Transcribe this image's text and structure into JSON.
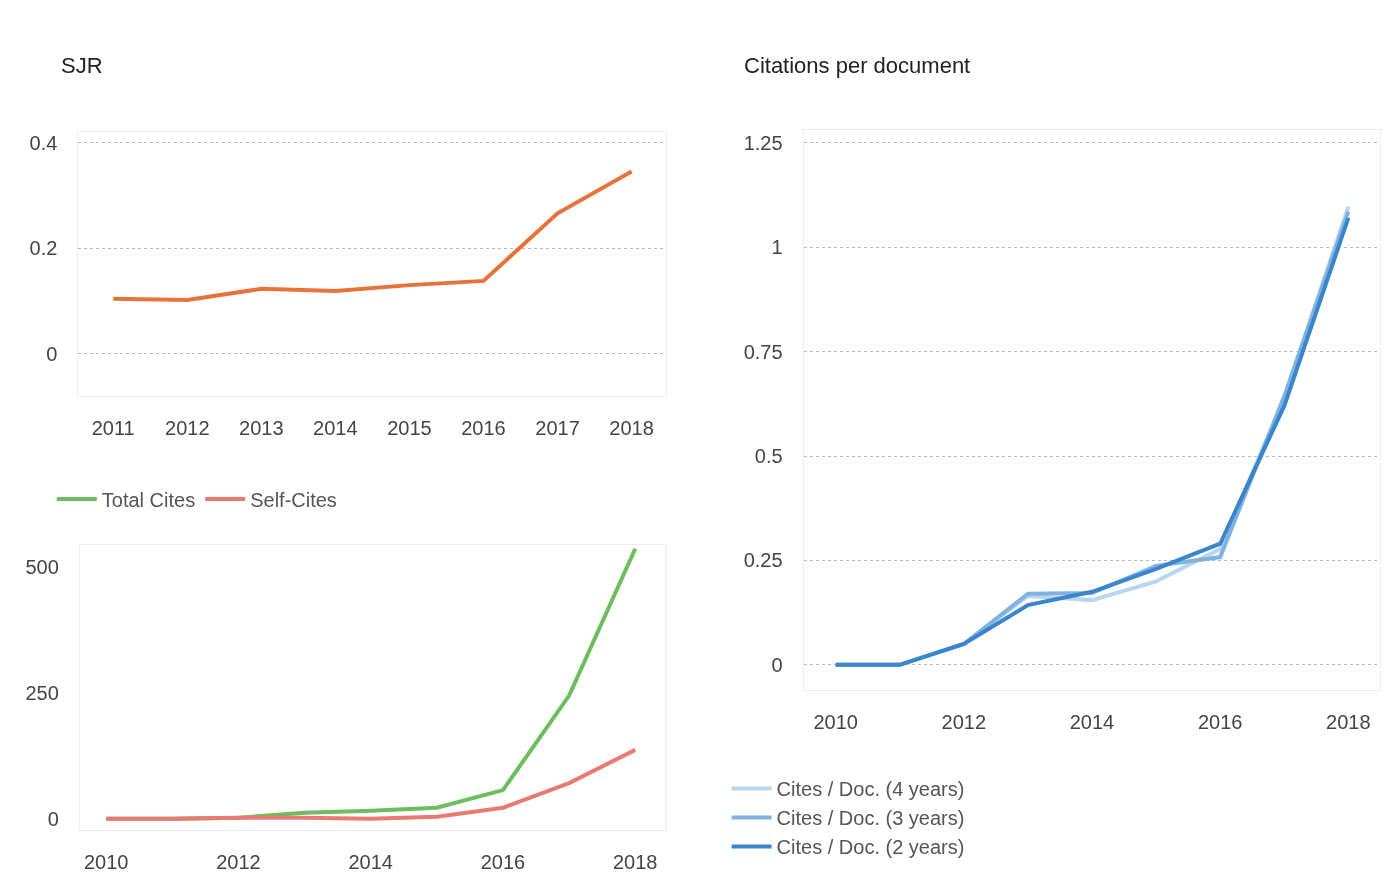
{
  "chart_data": [
    {
      "type": "line",
      "title": "SJR",
      "x": [
        2011,
        2012,
        2013,
        2014,
        2015,
        2016,
        2017,
        2018
      ],
      "series": [
        {
          "color": "#e8733a",
          "values": [
            0.104,
            0.102,
            0.123,
            0.119,
            0.13,
            0.138,
            0.266,
            0.345
          ]
        }
      ],
      "xlim": [
        2010.53,
        2018.47
      ],
      "xticks": [
        2011,
        2012,
        2013,
        2014,
        2015,
        2016,
        2017,
        2018
      ],
      "ylim": [
        -0.08,
        0.42
      ],
      "yticks": [
        0,
        0.2,
        0.4
      ],
      "grid": "y",
      "legend": false,
      "marker": "none",
      "line_style": "solid"
    },
    {
      "type": "line",
      "x": [
        2010,
        2011,
        2012,
        2013,
        2014,
        2015,
        2016,
        2017,
        2018
      ],
      "series": [
        {
          "name": "Total Cites",
          "color": "#6dbd5f",
          "values": [
            0,
            0,
            2,
            12,
            16,
            22,
            57,
            245,
            537
          ]
        },
        {
          "name": "Self-Cites",
          "color": "#ea7a70",
          "values": [
            0,
            0,
            2,
            2,
            0,
            4,
            22,
            71,
            137
          ]
        }
      ],
      "xlim": [
        2009.6,
        2018.45
      ],
      "xticks": [
        2010,
        2012,
        2014,
        2016,
        2018
      ],
      "ylim": [
        -22,
        545
      ],
      "yticks": [
        0,
        250,
        500
      ],
      "grid": false,
      "legend": "top left",
      "marker": "none",
      "line_style": "solid"
    },
    {
      "type": "line",
      "title": "Citations per document",
      "x": [
        2010,
        2011,
        2012,
        2013,
        2014,
        2015,
        2016,
        2017,
        2018
      ],
      "series": [
        {
          "name": "Cites / Doc. (4 years)",
          "color": "#b8d6ee",
          "values": [
            0,
            0,
            0.05,
            0.165,
            0.155,
            0.2,
            0.277,
            0.64,
            1.097
          ]
        },
        {
          "name": "Cites / Doc. (3 years)",
          "color": "#7fb2e0",
          "values": [
            0,
            0,
            0.05,
            0.17,
            0.172,
            0.237,
            0.258,
            0.643,
            1.085
          ]
        },
        {
          "name": "Cites / Doc. (2 years)",
          "color": "#3a85cc",
          "values": [
            0,
            0,
            0.05,
            0.143,
            0.175,
            0.23,
            0.29,
            0.62,
            1.07
          ]
        }
      ],
      "xlim": [
        2009.5,
        2018.5
      ],
      "xticks": [
        2010,
        2012,
        2014,
        2016,
        2018
      ],
      "ylim": [
        -0.06,
        1.28
      ],
      "yticks": [
        0,
        0.25,
        0.5,
        0.75,
        1,
        1.25
      ],
      "grid": "y",
      "legend": "bottom",
      "marker": "none",
      "line_style": "solid"
    }
  ]
}
